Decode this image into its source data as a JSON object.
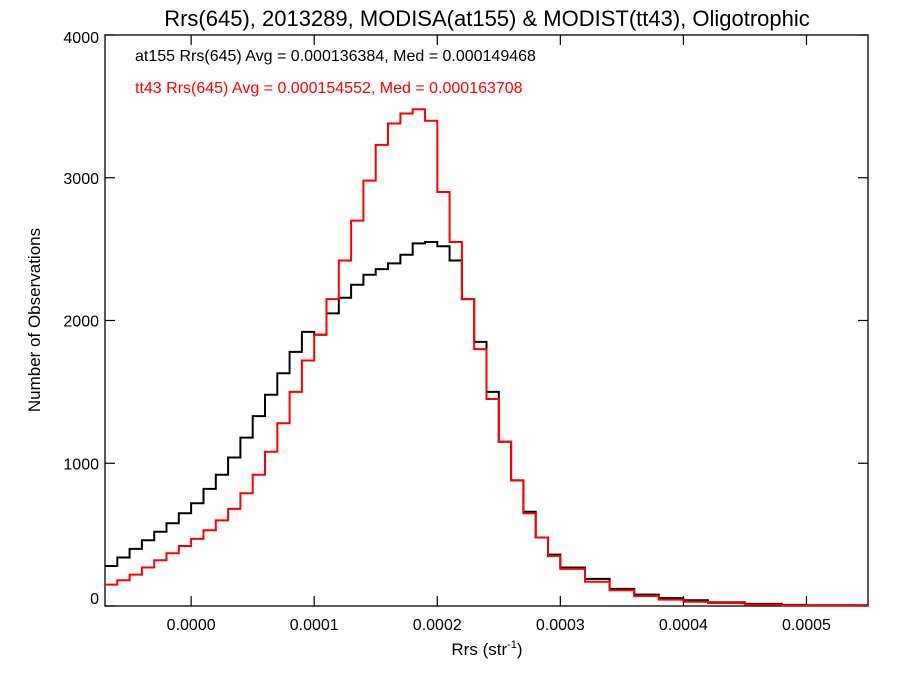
{
  "chart_data": {
    "type": "line",
    "title": "Rrs(645), 2013289, MODISA(at155) & MODIST(tt43), Oligotrophic",
    "xlabel": "Rrs (str",
    "xlabel_sup": "-1",
    "xlabel_end": ")",
    "ylabel": "Number of Observations",
    "xlim": [
      -7e-05,
      0.00055
    ],
    "ylim": [
      0,
      4000
    ],
    "x_ticks": [
      0.0,
      0.0001,
      0.0002,
      0.0003,
      0.0004,
      0.0005
    ],
    "x_tick_labels": [
      "0.0000",
      "0.0001",
      "0.0002",
      "0.0003",
      "0.0004",
      "0.0005"
    ],
    "y_ticks": [
      0,
      1000,
      2000,
      3000,
      4000
    ],
    "y_tick_labels": [
      "0",
      "1000",
      "2000",
      "3000",
      "4000"
    ],
    "grid": false,
    "legend": "top-left",
    "series": [
      {
        "name": "at155",
        "color": "#000000",
        "stats": "at155 Rrs(645) Avg = 0.000136384, Med = 0.000149468",
        "x": [
          -7e-05,
          -6e-05,
          -5e-05,
          -4e-05,
          -3e-05,
          -2e-05,
          -1e-05,
          0.0,
          1e-05,
          2e-05,
          3e-05,
          4e-05,
          5e-05,
          6e-05,
          7e-05,
          8e-05,
          9e-05,
          0.0001,
          0.00011,
          0.00012,
          0.00013,
          0.00014,
          0.00015,
          0.00016,
          0.00017,
          0.00018,
          0.00019,
          0.0002,
          0.00021,
          0.00022,
          0.00023,
          0.00024,
          0.00025,
          0.00026,
          0.00027,
          0.00028,
          0.00029,
          0.0003,
          0.00032,
          0.00034,
          0.00036,
          0.00038,
          0.0004,
          0.00042,
          0.00045,
          0.00048,
          0.0005,
          0.00055
        ],
        "y": [
          280,
          340,
          400,
          460,
          520,
          580,
          650,
          720,
          820,
          920,
          1040,
          1180,
          1330,
          1480,
          1630,
          1780,
          1920,
          1900,
          2050,
          2160,
          2250,
          2320,
          2360,
          2400,
          2460,
          2540,
          2550,
          2520,
          2420,
          2150,
          1850,
          1500,
          1150,
          880,
          660,
          480,
          360,
          270,
          190,
          120,
          80,
          55,
          40,
          25,
          15,
          8,
          5,
          2
        ]
      },
      {
        "name": "tt43",
        "color": "#ff0000",
        "stats": "tt43 Rrs(645) Avg = 0.000154552, Med = 0.000163708",
        "x": [
          -7e-05,
          -6e-05,
          -5e-05,
          -4e-05,
          -3e-05,
          -2e-05,
          -1e-05,
          0.0,
          1e-05,
          2e-05,
          3e-05,
          4e-05,
          5e-05,
          6e-05,
          7e-05,
          8e-05,
          9e-05,
          0.0001,
          0.00011,
          0.00012,
          0.00013,
          0.00014,
          0.00015,
          0.00016,
          0.00017,
          0.00018,
          0.00019,
          0.0002,
          0.00021,
          0.00022,
          0.00023,
          0.00024,
          0.00025,
          0.00026,
          0.00027,
          0.00028,
          0.00029,
          0.0003,
          0.00032,
          0.00034,
          0.00036,
          0.00038,
          0.0004,
          0.00042,
          0.00045,
          0.00048,
          0.0005,
          0.00055
        ],
        "y": [
          150,
          180,
          220,
          270,
          320,
          370,
          420,
          470,
          530,
          600,
          680,
          790,
          920,
          1080,
          1280,
          1500,
          1720,
          1900,
          2150,
          2420,
          2700,
          2980,
          3230,
          3380,
          3450,
          3480,
          3400,
          2900,
          2550,
          2150,
          1800,
          1450,
          1150,
          880,
          650,
          480,
          350,
          260,
          170,
          110,
          70,
          45,
          30,
          20,
          10,
          5,
          3,
          1
        ]
      }
    ]
  }
}
